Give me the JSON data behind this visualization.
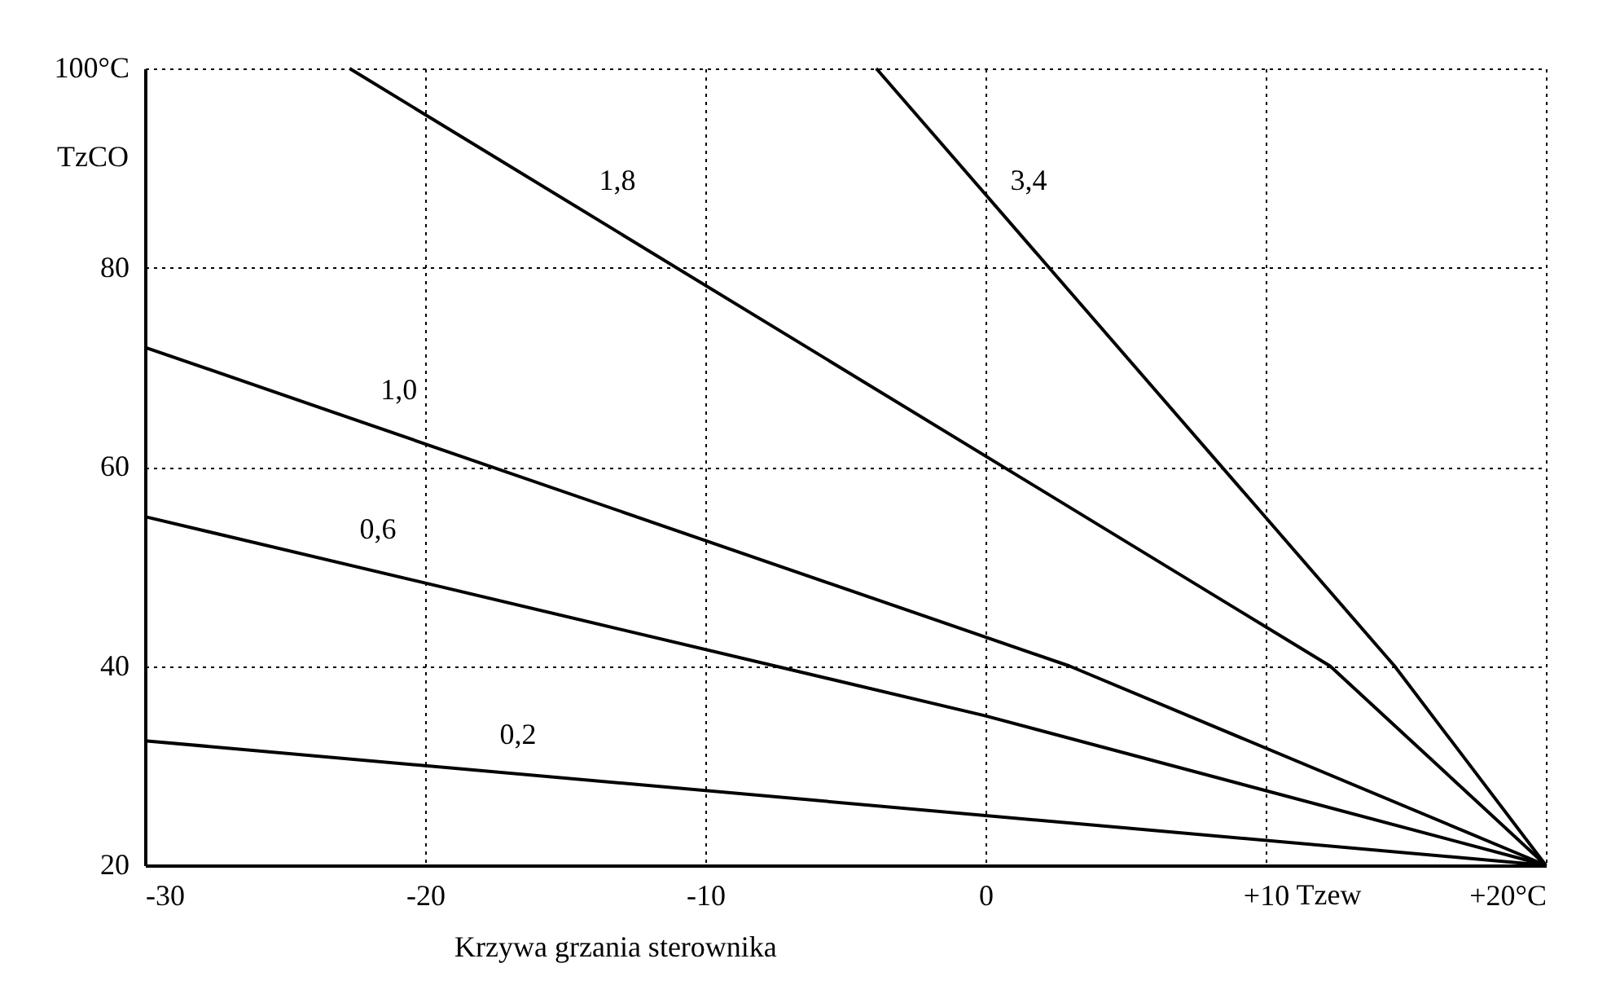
{
  "chart_data": {
    "type": "line",
    "xlabel": "Tzew",
    "ylabel": "TzCO",
    "xlim": [
      -30,
      20
    ],
    "xticks": [
      -30,
      -20,
      -10,
      0,
      {
        "value": 10,
        "label": "+10"
      },
      {
        "value": 20,
        "label": "+20°C"
      }
    ],
    "ylim": [
      20,
      100
    ],
    "yticks": [
      20,
      40,
      60,
      80,
      {
        "value": 100,
        "label": "100°C"
      }
    ],
    "grid": true,
    "line_style": "solid",
    "marker": "none",
    "series": [
      {
        "name": "1,8",
        "color": "#000000",
        "x": [
          -22.7,
          12.3,
          20
        ],
        "values": [
          100,
          40,
          20
        ]
      },
      {
        "name": "3,4",
        "color": "#000000",
        "x": [
          -3.9,
          14.6,
          20
        ],
        "values": [
          100,
          40,
          20
        ]
      },
      {
        "name": "1,0",
        "color": "#000000",
        "x": [
          -30,
          3,
          20
        ],
        "values": [
          72,
          40,
          20
        ]
      },
      {
        "name": "0,6",
        "color": "#000000",
        "x": [
          -30,
          0,
          20
        ],
        "values": [
          55,
          35,
          20
        ]
      },
      {
        "name": "0,2",
        "color": "#000000",
        "x": [
          -30,
          20
        ],
        "values": [
          32.5,
          20
        ]
      }
    ],
    "annotations": [
      "Krzywa grzania sterownika"
    ]
  }
}
